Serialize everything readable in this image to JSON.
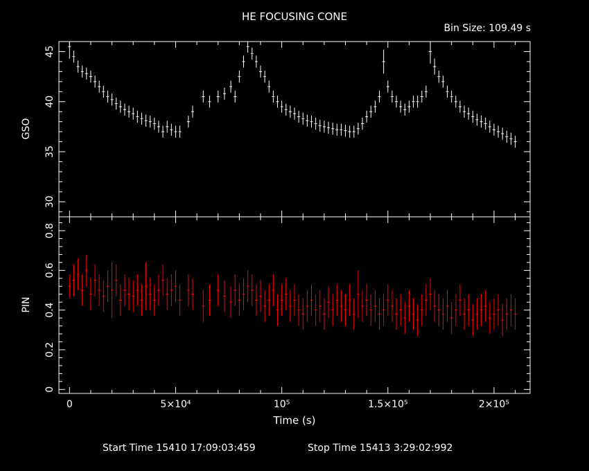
{
  "title": "HE FOCUSING CONE",
  "bin_size": "Bin Size: 109.49 s",
  "footer": {
    "start": "Start Time 15410 17:09:03:459",
    "stop": "Stop Time 15413  3:29:02:992"
  },
  "colors": {
    "background": "#000000",
    "axes": "#ffffff",
    "gso": "#ffffff",
    "pin": "#ff0000"
  },
  "chart_data": [
    {
      "type": "scatter",
      "ylabel": "GSO",
      "xlabel": "",
      "xlim": [
        -5000,
        217000
      ],
      "ylim": [
        28.5,
        46
      ],
      "yticks": [
        30,
        35,
        40,
        45
      ],
      "x_ticklabels_shown": false,
      "points_per_bin": "vertical error bars, 109.49 s bins",
      "series": [
        {
          "x": [
            0,
            2000,
            4000,
            6000,
            8000,
            10000,
            12000,
            14000,
            16000,
            18000,
            20000,
            22000,
            24000,
            26000,
            28000,
            30000,
            32000,
            34000,
            36000,
            38000,
            40000,
            42000,
            44000,
            46000,
            48000,
            50000,
            52000,
            56000,
            58000,
            63000,
            66000,
            70000,
            73000,
            76000,
            78000,
            80000,
            82000,
            84000,
            86000,
            88000,
            90000,
            92000,
            94000,
            96000,
            98000,
            100000,
            102000,
            104000,
            106000,
            108000,
            110000,
            112000,
            114000,
            116000,
            118000,
            120000,
            122000,
            124000,
            126000,
            128000,
            130000,
            132000,
            134000,
            136000,
            138000,
            140000,
            142000,
            144000,
            146000,
            148000,
            150000,
            152000,
            154000,
            156000,
            158000,
            160000,
            162000,
            164000,
            166000,
            168000,
            170000,
            172000,
            174000,
            176000,
            178000,
            180000,
            182000,
            184000,
            186000,
            188000,
            190000,
            192000,
            194000,
            196000,
            198000,
            200000,
            202000,
            204000,
            206000,
            208000,
            210000
          ],
          "y": [
            45.5,
            44.5,
            43.5,
            43.0,
            42.8,
            42.5,
            42.0,
            41.5,
            41.0,
            40.5,
            40.2,
            39.8,
            39.5,
            39.2,
            39.0,
            38.8,
            38.5,
            38.3,
            38.1,
            38.0,
            37.8,
            37.5,
            37.0,
            37.5,
            37.2,
            37.0,
            37.0,
            38.0,
            39.0,
            40.5,
            40.0,
            40.5,
            40.8,
            41.5,
            40.5,
            42.5,
            44.0,
            45.5,
            44.8,
            44.0,
            43.0,
            42.5,
            41.5,
            40.5,
            40.0,
            39.5,
            39.2,
            39.0,
            38.8,
            38.5,
            38.3,
            38.1,
            38.0,
            37.8,
            37.6,
            37.5,
            37.4,
            37.3,
            37.2,
            37.2,
            37.1,
            37.0,
            37.0,
            37.3,
            37.8,
            38.5,
            39.0,
            39.5,
            40.5,
            44.0,
            41.5,
            40.5,
            40.0,
            39.5,
            39.2,
            39.5,
            40.0,
            40.0,
            40.5,
            41.0,
            45.0,
            43.5,
            42.5,
            42.0,
            41.0,
            40.5,
            40.0,
            39.5,
            39.0,
            38.8,
            38.5,
            38.2,
            38.0,
            37.8,
            37.5,
            37.2,
            37.0,
            36.8,
            36.5,
            36.3,
            36.0
          ],
          "err": [
            1.2,
            0.6,
            0.6,
            0.6,
            0.6,
            0.6,
            0.6,
            0.6,
            0.6,
            0.6,
            0.6,
            0.6,
            0.6,
            0.6,
            0.6,
            0.6,
            0.6,
            0.6,
            0.6,
            0.6,
            0.6,
            0.6,
            0.6,
            0.6,
            0.6,
            0.6,
            0.6,
            0.6,
            0.6,
            0.6,
            0.6,
            0.6,
            0.6,
            0.6,
            0.6,
            0.6,
            0.6,
            0.6,
            0.6,
            0.6,
            0.6,
            0.6,
            0.6,
            0.6,
            0.6,
            0.6,
            0.6,
            0.6,
            0.6,
            0.6,
            0.6,
            0.6,
            0.6,
            0.6,
            0.6,
            0.6,
            0.6,
            0.6,
            0.6,
            0.6,
            0.6,
            0.6,
            0.6,
            0.6,
            0.6,
            0.6,
            0.6,
            0.6,
            0.6,
            1.2,
            0.6,
            0.6,
            0.6,
            0.6,
            0.6,
            0.6,
            0.6,
            0.6,
            0.6,
            0.6,
            1.2,
            0.8,
            0.6,
            0.6,
            0.6,
            0.6,
            0.6,
            0.6,
            0.6,
            0.6,
            0.6,
            0.6,
            0.6,
            0.6,
            0.6,
            0.6,
            0.6,
            0.6,
            0.6,
            0.6,
            0.6
          ]
        }
      ]
    },
    {
      "type": "scatter",
      "ylabel": "PIN",
      "xlabel": "Time (s)",
      "xlim": [
        -5000,
        217000
      ],
      "ylim": [
        -0.02,
        0.87
      ],
      "yticks": [
        0,
        0.2,
        0.4,
        0.6,
        0.8
      ],
      "xticks": [
        0,
        50000,
        100000,
        150000,
        200000
      ],
      "xticklabels": [
        "0",
        "5×10⁴",
        "10⁵",
        "1.5×10⁵",
        "2×10⁵"
      ],
      "points_per_bin": "vertical error bars, 109.49 s bins",
      "series": [
        {
          "x": [
            0,
            2000,
            4000,
            6000,
            8000,
            10000,
            12000,
            14000,
            16000,
            18000,
            20000,
            22000,
            24000,
            26000,
            28000,
            30000,
            32000,
            34000,
            36000,
            38000,
            40000,
            42000,
            44000,
            46000,
            48000,
            50000,
            52000,
            56000,
            58000,
            63000,
            66000,
            70000,
            73000,
            76000,
            78000,
            80000,
            82000,
            84000,
            86000,
            88000,
            90000,
            92000,
            94000,
            96000,
            98000,
            100000,
            102000,
            104000,
            106000,
            108000,
            110000,
            112000,
            114000,
            116000,
            118000,
            120000,
            122000,
            124000,
            126000,
            128000,
            130000,
            132000,
            134000,
            136000,
            138000,
            140000,
            142000,
            144000,
            146000,
            148000,
            150000,
            152000,
            154000,
            156000,
            158000,
            160000,
            162000,
            164000,
            166000,
            168000,
            170000,
            172000,
            174000,
            176000,
            178000,
            180000,
            182000,
            184000,
            186000,
            188000,
            190000,
            192000,
            194000,
            196000,
            198000,
            200000,
            202000,
            204000,
            206000,
            208000,
            210000
          ],
          "y": [
            0.52,
            0.55,
            0.58,
            0.5,
            0.6,
            0.48,
            0.55,
            0.5,
            0.47,
            0.52,
            0.5,
            0.55,
            0.45,
            0.5,
            0.48,
            0.47,
            0.5,
            0.45,
            0.52,
            0.48,
            0.45,
            0.5,
            0.55,
            0.48,
            0.5,
            0.52,
            0.45,
            0.5,
            0.48,
            0.42,
            0.45,
            0.5,
            0.47,
            0.44,
            0.5,
            0.45,
            0.48,
            0.52,
            0.5,
            0.45,
            0.47,
            0.42,
            0.45,
            0.5,
            0.4,
            0.45,
            0.48,
            0.42,
            0.45,
            0.4,
            0.38,
            0.42,
            0.45,
            0.4,
            0.42,
            0.38,
            0.44,
            0.4,
            0.45,
            0.42,
            0.4,
            0.45,
            0.38,
            0.48,
            0.42,
            0.45,
            0.4,
            0.42,
            0.38,
            0.4,
            0.45,
            0.42,
            0.38,
            0.4,
            0.36,
            0.42,
            0.38,
            0.35,
            0.4,
            0.45,
            0.48,
            0.42,
            0.4,
            0.38,
            0.42,
            0.36,
            0.4,
            0.45,
            0.38,
            0.4,
            0.35,
            0.38,
            0.4,
            0.42,
            0.36,
            0.38,
            0.4,
            0.35,
            0.38,
            0.4,
            0.38
          ],
          "err": [
            0.06,
            0.08,
            0.08,
            0.08,
            0.08,
            0.08,
            0.08,
            0.08,
            0.08,
            0.08,
            0.14,
            0.08,
            0.08,
            0.08,
            0.08,
            0.08,
            0.08,
            0.08,
            0.12,
            0.08,
            0.08,
            0.08,
            0.08,
            0.08,
            0.08,
            0.08,
            0.08,
            0.08,
            0.08,
            0.08,
            0.08,
            0.08,
            0.08,
            0.08,
            0.08,
            0.08,
            0.08,
            0.08,
            0.08,
            0.08,
            0.08,
            0.08,
            0.08,
            0.08,
            0.08,
            0.08,
            0.08,
            0.08,
            0.08,
            0.08,
            0.08,
            0.08,
            0.08,
            0.08,
            0.08,
            0.08,
            0.08,
            0.08,
            0.08,
            0.08,
            0.08,
            0.08,
            0.08,
            0.12,
            0.08,
            0.08,
            0.08,
            0.08,
            0.08,
            0.08,
            0.08,
            0.08,
            0.08,
            0.08,
            0.08,
            0.08,
            0.08,
            0.08,
            0.08,
            0.08,
            0.08,
            0.08,
            0.08,
            0.08,
            0.08,
            0.08,
            0.08,
            0.08,
            0.08,
            0.08,
            0.08,
            0.08,
            0.08,
            0.08,
            0.08,
            0.08,
            0.08,
            0.08,
            0.08,
            0.08,
            0.08
          ]
        }
      ]
    }
  ]
}
